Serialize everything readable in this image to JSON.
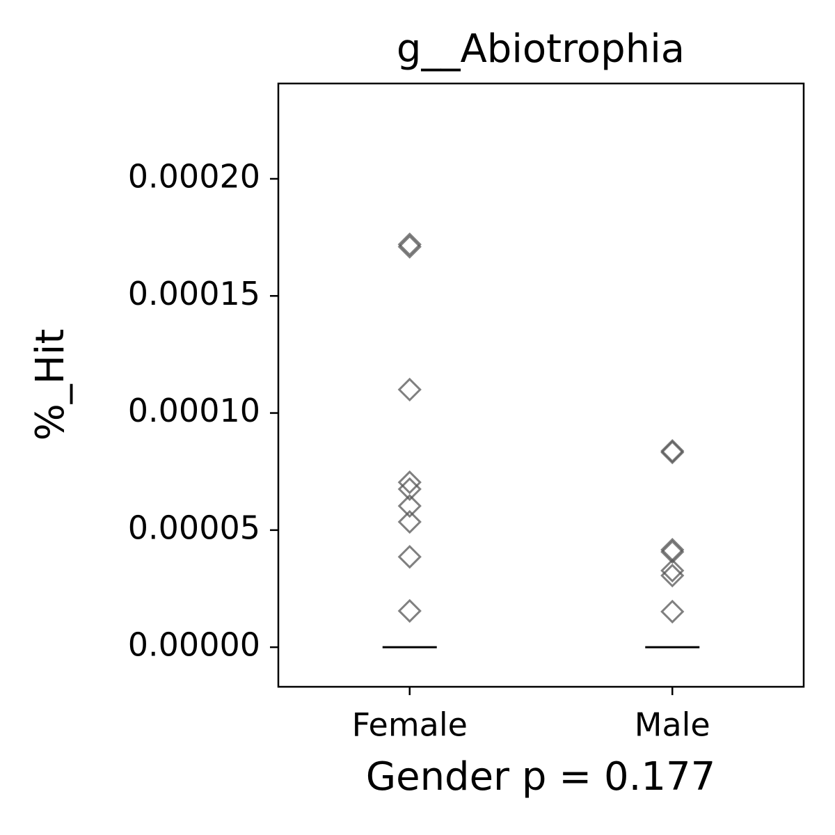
{
  "chart_data": {
    "type": "strip",
    "title": "g__Abiotrophia",
    "xlabel": "Gender p = 0.177",
    "ylabel": "%_Hit",
    "categories": [
      "Female",
      "Male"
    ],
    "values": [
      [
        0.000172,
        0.000171,
        0.00011,
        7.04e-05,
        6.75e-05,
        6.03e-05,
        5.35e-05,
        3.86e-05,
        1.55e-05
      ],
      [
        8.38e-05,
        8.32e-05,
        4.16e-05,
        4.07e-05,
        3.27e-05,
        3.06e-05,
        1.52e-05
      ]
    ],
    "medians": [
      0,
      0
    ],
    "color": "#555555",
    "median_color": "#000000",
    "ylim": [
      -1.69e-05,
      0.0002407
    ],
    "yticks": [
      {
        "value": 0,
        "label": "0.00000"
      },
      {
        "value": 5e-05,
        "label": "0.00005"
      },
      {
        "value": 0.0001,
        "label": "0.00010"
      },
      {
        "value": 0.00015,
        "label": "0.00015"
      },
      {
        "value": 0.0002,
        "label": "0.00020"
      }
    ],
    "grid": false
  }
}
